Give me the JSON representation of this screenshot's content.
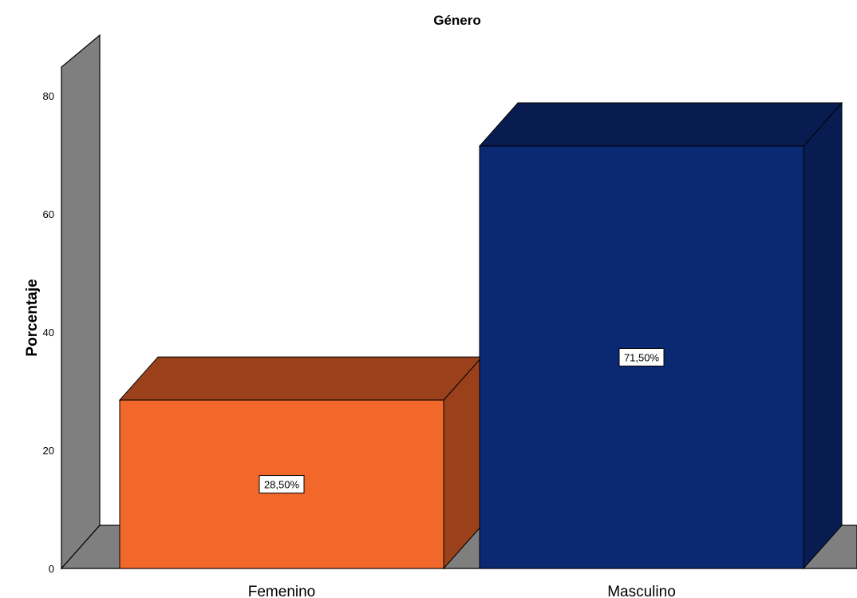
{
  "chart_data": {
    "type": "bar",
    "title": "Género",
    "ylabel": "Porcentaje",
    "xlabel": "",
    "categories": [
      "Femenino",
      "Masculino"
    ],
    "values": [
      28.5,
      71.5
    ],
    "data_labels": [
      "28,50%",
      "71,50%"
    ],
    "yticks": [
      "0",
      "20",
      "40",
      "60",
      "80"
    ],
    "ylim": [
      0,
      90
    ],
    "grid": false,
    "style": "3d",
    "colors": {
      "bars": [
        "#f2682b",
        "#0b2873"
      ],
      "bar_tops": [
        "#9a411c",
        "#091c51"
      ],
      "bar_sides": [
        "#9a411c",
        "#091c51"
      ],
      "wall": "#7f7f7f",
      "floor": "#7f7f7f"
    }
  }
}
